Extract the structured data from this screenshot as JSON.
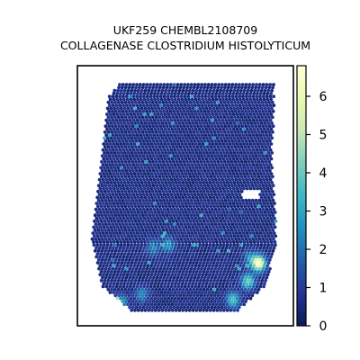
{
  "chart_data": {
    "type": "heatmap",
    "title_line1": "UKF259 CHEMBL2108709",
    "title_line2": "COLLAGENASE CLOSTRIDIUM HISTOLYTICUM",
    "xlabel": "",
    "ylabel": "",
    "colorbar": {
      "colormap": "YlGnBu",
      "range": [
        0,
        6.8
      ],
      "ticks": [
        0,
        1,
        2,
        3,
        4,
        5,
        6
      ]
    },
    "spots": {
      "description": "",
      "baseline_value": 0.6,
      "hotspots": [
        {
          "x": 0.84,
          "y": 0.76,
          "value": 6.2
        },
        {
          "x": 0.79,
          "y": 0.83,
          "value": 3.5
        },
        {
          "x": 0.72,
          "y": 0.9,
          "value": 3.0
        },
        {
          "x": 0.2,
          "y": 0.91,
          "value": 2.5
        },
        {
          "x": 0.3,
          "y": 0.88,
          "value": 2.0
        },
        {
          "x": 0.42,
          "y": 0.69,
          "value": 2.2
        },
        {
          "x": 0.35,
          "y": 0.7,
          "value": 1.8
        },
        {
          "x": 0.8,
          "y": 0.74,
          "value": 2.0
        }
      ]
    }
  }
}
